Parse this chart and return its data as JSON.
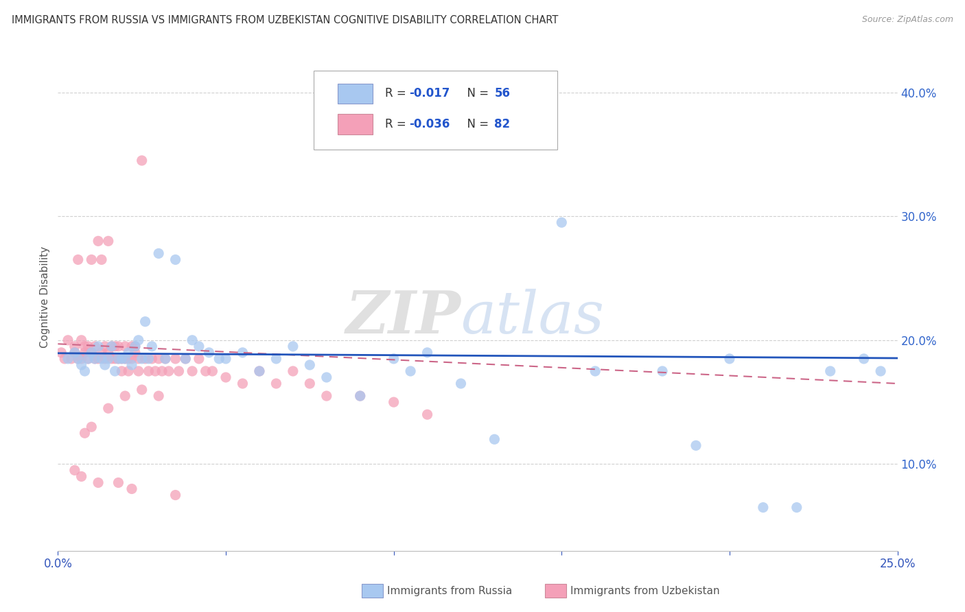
{
  "title": "IMMIGRANTS FROM RUSSIA VS IMMIGRANTS FROM UZBEKISTAN COGNITIVE DISABILITY CORRELATION CHART",
  "source": "Source: ZipAtlas.com",
  "ylabel": "Cognitive Disability",
  "yticks": [
    0.1,
    0.2,
    0.3,
    0.4
  ],
  "ytick_labels": [
    "10.0%",
    "20.0%",
    "30.0%",
    "40.0%"
  ],
  "xlim": [
    0.0,
    0.25
  ],
  "ylim": [
    0.03,
    0.44
  ],
  "legend_r1_text": "R = ",
  "legend_r1_val": "-0.017",
  "legend_r1_n": "  N = ",
  "legend_r1_nval": "56",
  "legend_r2_text": "R = ",
  "legend_r2_val": "-0.036",
  "legend_r2_n": "  N = ",
  "legend_r2_nval": "82",
  "color_russia": "#a8c8f0",
  "color_uzbekistan": "#f4a0b8",
  "color_russia_line": "#2255bb",
  "color_uzbekistan_line": "#cc6688",
  "russia_scatter_x": [
    0.003,
    0.005,
    0.006,
    0.007,
    0.008,
    0.009,
    0.01,
    0.011,
    0.012,
    0.013,
    0.014,
    0.015,
    0.016,
    0.017,
    0.018,
    0.019,
    0.02,
    0.021,
    0.022,
    0.023,
    0.024,
    0.025,
    0.026,
    0.027,
    0.028,
    0.03,
    0.032,
    0.035,
    0.038,
    0.04,
    0.042,
    0.045,
    0.048,
    0.05,
    0.055,
    0.06,
    0.065,
    0.07,
    0.075,
    0.08,
    0.09,
    0.1,
    0.105,
    0.11,
    0.12,
    0.13,
    0.15,
    0.16,
    0.18,
    0.19,
    0.2,
    0.21,
    0.22,
    0.23,
    0.24,
    0.245
  ],
  "russia_scatter_y": [
    0.185,
    0.19,
    0.185,
    0.18,
    0.175,
    0.185,
    0.19,
    0.185,
    0.195,
    0.185,
    0.18,
    0.185,
    0.195,
    0.175,
    0.185,
    0.185,
    0.185,
    0.19,
    0.18,
    0.195,
    0.2,
    0.185,
    0.215,
    0.185,
    0.195,
    0.27,
    0.185,
    0.265,
    0.185,
    0.2,
    0.195,
    0.19,
    0.185,
    0.185,
    0.19,
    0.175,
    0.185,
    0.195,
    0.18,
    0.17,
    0.155,
    0.185,
    0.175,
    0.19,
    0.165,
    0.12,
    0.295,
    0.175,
    0.175,
    0.115,
    0.185,
    0.065,
    0.065,
    0.175,
    0.185,
    0.175
  ],
  "uzbekistan_scatter_x": [
    0.001,
    0.002,
    0.003,
    0.004,
    0.005,
    0.005,
    0.006,
    0.006,
    0.007,
    0.007,
    0.008,
    0.008,
    0.009,
    0.009,
    0.01,
    0.01,
    0.011,
    0.011,
    0.012,
    0.012,
    0.013,
    0.013,
    0.014,
    0.014,
    0.015,
    0.015,
    0.016,
    0.016,
    0.017,
    0.017,
    0.018,
    0.018,
    0.019,
    0.019,
    0.02,
    0.02,
    0.021,
    0.021,
    0.022,
    0.022,
    0.023,
    0.023,
    0.024,
    0.024,
    0.025,
    0.026,
    0.027,
    0.028,
    0.029,
    0.03,
    0.031,
    0.032,
    0.033,
    0.035,
    0.036,
    0.038,
    0.04,
    0.042,
    0.044,
    0.046,
    0.05,
    0.055,
    0.06,
    0.065,
    0.07,
    0.075,
    0.08,
    0.09,
    0.1,
    0.11,
    0.025,
    0.03,
    0.02,
    0.015,
    0.01,
    0.008,
    0.005,
    0.007,
    0.012,
    0.018,
    0.022,
    0.035
  ],
  "uzbekistan_scatter_y": [
    0.19,
    0.185,
    0.2,
    0.185,
    0.195,
    0.19,
    0.185,
    0.265,
    0.185,
    0.2,
    0.19,
    0.195,
    0.185,
    0.195,
    0.19,
    0.265,
    0.185,
    0.195,
    0.185,
    0.28,
    0.19,
    0.265,
    0.185,
    0.195,
    0.19,
    0.28,
    0.185,
    0.195,
    0.185,
    0.195,
    0.185,
    0.195,
    0.185,
    0.175,
    0.185,
    0.195,
    0.185,
    0.175,
    0.185,
    0.195,
    0.19,
    0.195,
    0.185,
    0.175,
    0.345,
    0.185,
    0.175,
    0.185,
    0.175,
    0.185,
    0.175,
    0.185,
    0.175,
    0.185,
    0.175,
    0.185,
    0.175,
    0.185,
    0.175,
    0.175,
    0.17,
    0.165,
    0.175,
    0.165,
    0.175,
    0.165,
    0.155,
    0.155,
    0.15,
    0.14,
    0.16,
    0.155,
    0.155,
    0.145,
    0.13,
    0.125,
    0.095,
    0.09,
    0.085,
    0.085,
    0.08,
    0.075
  ],
  "russia_trend": [
    0.1895,
    0.1855
  ],
  "uzbekistan_trend": [
    0.197,
    0.165
  ],
  "watermark_zip": "ZIP",
  "watermark_atlas": "atlas",
  "background_color": "#ffffff",
  "grid_color": "#d0d0d0"
}
